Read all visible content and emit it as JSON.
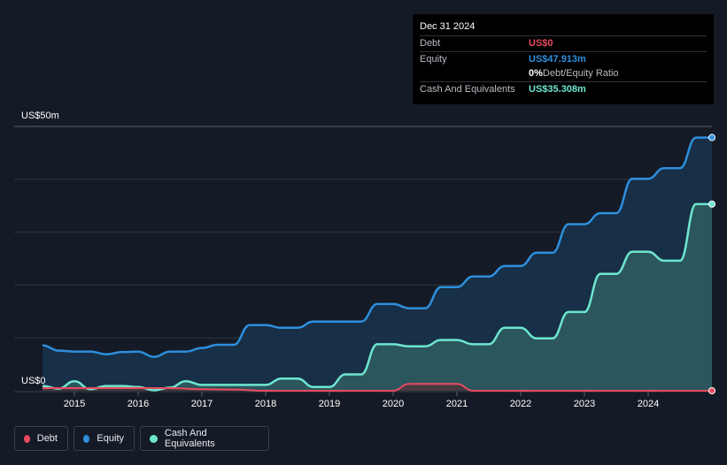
{
  "tooltip": {
    "date": "Dec 31 2024",
    "rows": {
      "debt": {
        "label": "Debt",
        "value": "US$0"
      },
      "equity": {
        "label": "Equity",
        "value": "US$47.913m"
      },
      "ratio": {
        "value": "0%",
        "suffix": " Debt/Equity Ratio"
      },
      "cash": {
        "label": "Cash And Equivalents",
        "value": "US$35.308m"
      }
    }
  },
  "colors": {
    "debt": "#e84a5f",
    "equity": "#2e8fdc",
    "cash": "#6ee6d0",
    "background": "#151b26",
    "grid": "#2f3540"
  },
  "legend": [
    {
      "key": "debt",
      "label": "Debt"
    },
    {
      "key": "equity",
      "label": "Equity"
    },
    {
      "key": "cash",
      "label": "Cash And Equivalents"
    }
  ],
  "chart_data": {
    "type": "area",
    "title": "",
    "ylabel_top": "US$50m",
    "ylabel_bottom": "US$0",
    "ylim": [
      0,
      50
    ],
    "xlim": [
      2014.5,
      2025.0
    ],
    "x_ticks": [
      "2015",
      "2016",
      "2017",
      "2018",
      "2019",
      "2020",
      "2021",
      "2022",
      "2023",
      "2024"
    ],
    "grid": true,
    "legend_position": "bottom-left",
    "series": [
      {
        "name": "Equity",
        "key": "equity",
        "points": [
          [
            2014.5,
            8.6
          ],
          [
            2014.75,
            7.6
          ],
          [
            2015.0,
            7.4
          ],
          [
            2015.25,
            7.4
          ],
          [
            2015.5,
            6.9
          ],
          [
            2015.75,
            7.3
          ],
          [
            2016.0,
            7.4
          ],
          [
            2016.25,
            6.4
          ],
          [
            2016.5,
            7.4
          ],
          [
            2016.75,
            7.4
          ],
          [
            2017.0,
            8.1
          ],
          [
            2017.25,
            8.7
          ],
          [
            2017.5,
            8.7
          ],
          [
            2017.75,
            12.4
          ],
          [
            2018.0,
            12.4
          ],
          [
            2018.25,
            11.9
          ],
          [
            2018.5,
            11.9
          ],
          [
            2018.75,
            13.1
          ],
          [
            2019.0,
            13.1
          ],
          [
            2019.25,
            13.1
          ],
          [
            2019.5,
            13.1
          ],
          [
            2019.75,
            16.4
          ],
          [
            2020.0,
            16.4
          ],
          [
            2020.25,
            15.6
          ],
          [
            2020.5,
            15.6
          ],
          [
            2020.75,
            19.6
          ],
          [
            2021.0,
            19.6
          ],
          [
            2021.25,
            21.6
          ],
          [
            2021.5,
            21.6
          ],
          [
            2021.75,
            23.6
          ],
          [
            2022.0,
            23.6
          ],
          [
            2022.25,
            26.1
          ],
          [
            2022.5,
            26.1
          ],
          [
            2022.75,
            31.5
          ],
          [
            2023.0,
            31.5
          ],
          [
            2023.25,
            33.6
          ],
          [
            2023.5,
            33.6
          ],
          [
            2023.75,
            40.1
          ],
          [
            2024.0,
            40.1
          ],
          [
            2024.25,
            42.1
          ],
          [
            2024.5,
            42.1
          ],
          [
            2024.75,
            47.9
          ],
          [
            2025.0,
            47.9
          ]
        ]
      },
      {
        "name": "Cash And Equivalents",
        "key": "cash",
        "points": [
          [
            2014.5,
            0.9
          ],
          [
            2014.75,
            0.4
          ],
          [
            2015.0,
            1.8
          ],
          [
            2015.25,
            0.3
          ],
          [
            2015.5,
            0.9
          ],
          [
            2015.75,
            0.9
          ],
          [
            2016.0,
            0.7
          ],
          [
            2016.25,
            0.1
          ],
          [
            2016.5,
            0.6
          ],
          [
            2016.75,
            1.8
          ],
          [
            2017.0,
            1.1
          ],
          [
            2017.25,
            1.1
          ],
          [
            2017.5,
            1.1
          ],
          [
            2017.75,
            1.1
          ],
          [
            2018.0,
            1.1
          ],
          [
            2018.25,
            2.3
          ],
          [
            2018.5,
            2.3
          ],
          [
            2018.75,
            0.7
          ],
          [
            2019.0,
            0.7
          ],
          [
            2019.25,
            3.1
          ],
          [
            2019.5,
            3.1
          ],
          [
            2019.75,
            8.8
          ],
          [
            2020.0,
            8.8
          ],
          [
            2020.25,
            8.4
          ],
          [
            2020.5,
            8.4
          ],
          [
            2020.75,
            9.6
          ],
          [
            2021.0,
            9.6
          ],
          [
            2021.25,
            8.8
          ],
          [
            2021.5,
            8.8
          ],
          [
            2021.75,
            11.9
          ],
          [
            2022.0,
            11.9
          ],
          [
            2022.25,
            9.9
          ],
          [
            2022.5,
            9.9
          ],
          [
            2022.75,
            14.9
          ],
          [
            2023.0,
            14.9
          ],
          [
            2023.25,
            22.1
          ],
          [
            2023.5,
            22.1
          ],
          [
            2023.75,
            26.3
          ],
          [
            2024.0,
            26.3
          ],
          [
            2024.25,
            24.6
          ],
          [
            2024.5,
            24.6
          ],
          [
            2024.75,
            35.3
          ],
          [
            2025.0,
            35.3
          ]
        ]
      },
      {
        "name": "Debt",
        "key": "debt",
        "points": [
          [
            2014.5,
            0.5
          ],
          [
            2015.0,
            0.5
          ],
          [
            2015.5,
            0.5
          ],
          [
            2016.0,
            0.5
          ],
          [
            2016.5,
            0.5
          ],
          [
            2017.0,
            0.3
          ],
          [
            2017.5,
            0.2
          ],
          [
            2018.0,
            0.0
          ],
          [
            2019.0,
            0.0
          ],
          [
            2019.75,
            0.0
          ],
          [
            2020.0,
            0.0
          ],
          [
            2020.25,
            1.3
          ],
          [
            2020.5,
            1.3
          ],
          [
            2020.75,
            1.3
          ],
          [
            2021.0,
            1.3
          ],
          [
            2021.25,
            0.0
          ],
          [
            2022.0,
            0.0
          ],
          [
            2023.0,
            0.0
          ],
          [
            2024.0,
            0.0
          ],
          [
            2025.0,
            0.0
          ]
        ]
      }
    ]
  }
}
